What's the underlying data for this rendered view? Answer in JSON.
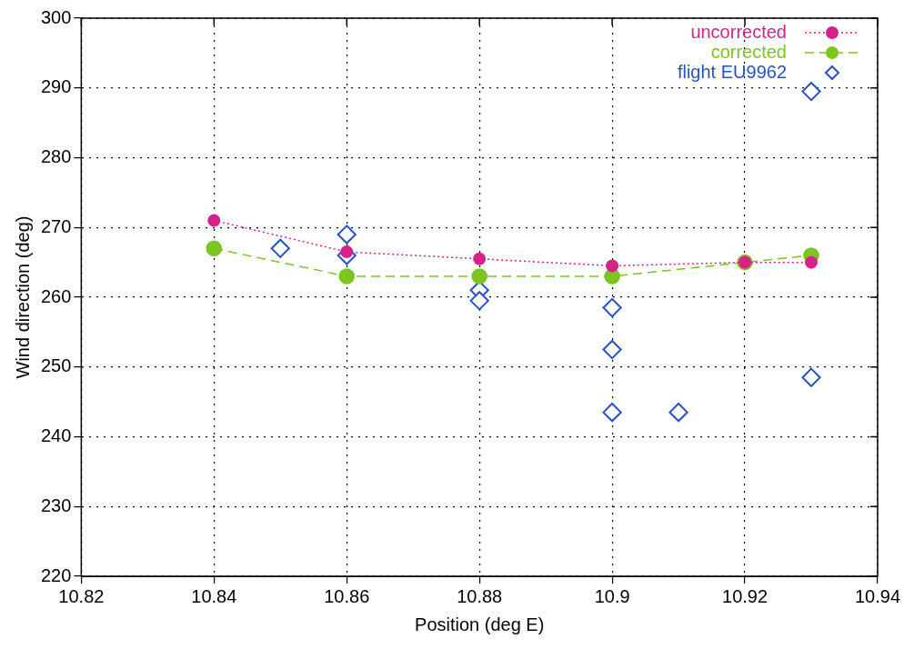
{
  "chart_data": {
    "type": "line",
    "xlabel": "Position (deg E)",
    "ylabel": "Wind direction (deg)",
    "xlim": [
      10.82,
      10.94
    ],
    "xticks": [
      {
        "value": 10.82,
        "label": "10.82"
      },
      {
        "value": 10.84,
        "label": "10.84"
      },
      {
        "value": 10.86,
        "label": "10.86"
      },
      {
        "value": 10.88,
        "label": "10.88"
      },
      {
        "value": 10.9,
        "label": "10.9"
      },
      {
        "value": 10.92,
        "label": "10.92"
      },
      {
        "value": 10.94,
        "label": "10.94"
      }
    ],
    "ylim": [
      220,
      300
    ],
    "yticks": [
      220,
      230,
      240,
      250,
      260,
      270,
      280,
      290,
      300
    ],
    "grid": true,
    "legend": "top right",
    "series": [
      {
        "name": "uncorrected",
        "color": "#d6218b",
        "line_style": "dotted",
        "marker": "circle",
        "x": [
          10.84,
          10.86,
          10.88,
          10.9,
          10.92,
          10.93
        ],
        "values": [
          271,
          266.5,
          265.5,
          264.5,
          265,
          265
        ]
      },
      {
        "name": "corrected",
        "color": "#7cc520",
        "line_style": "dashed",
        "marker": "circle",
        "x": [
          10.84,
          10.86,
          10.88,
          10.9,
          10.92,
          10.93
        ],
        "values": [
          267,
          263,
          263,
          263,
          265,
          266
        ]
      },
      {
        "name": "flight EU9962",
        "type": "scatter",
        "color": "#2a50c8",
        "marker": "diamond",
        "x": [
          10.85,
          10.86,
          10.86,
          10.88,
          10.88,
          10.9,
          10.9,
          10.9,
          10.91,
          10.93,
          10.93
        ],
        "values": [
          267,
          269,
          266,
          261,
          259.5,
          258.5,
          252.5,
          243.5,
          243.5,
          289.5,
          248.5
        ]
      }
    ]
  }
}
